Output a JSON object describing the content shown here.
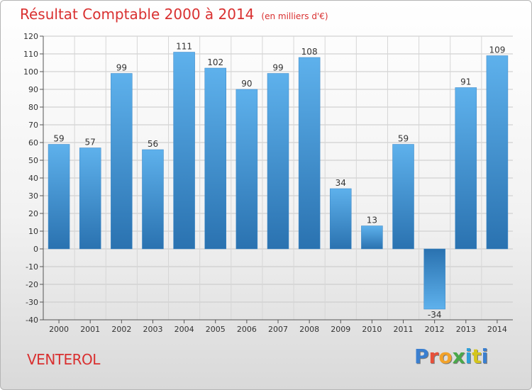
{
  "chart_data": {
    "type": "bar",
    "title": "Résultat Comptable 2000 à 2014",
    "unit_label": "(en milliers d'€)",
    "categories": [
      "2000",
      "2001",
      "2002",
      "2003",
      "2004",
      "2005",
      "2006",
      "2007",
      "2008",
      "2009",
      "2010",
      "2011",
      "2012",
      "2013",
      "2014"
    ],
    "values": [
      59,
      57,
      99,
      56,
      111,
      102,
      90,
      99,
      108,
      34,
      13,
      59,
      -34,
      91,
      109
    ],
    "ylim": [
      -40,
      120
    ],
    "yticks": [
      120,
      110,
      100,
      90,
      80,
      70,
      60,
      50,
      40,
      30,
      20,
      10,
      0,
      -10,
      -20,
      -30,
      -40
    ],
    "grid": true,
    "xlabel": "",
    "ylabel": "",
    "colors": {
      "bar_light": "#5eb1ec",
      "bar_dark": "#2a72b0",
      "title": "#d93030"
    }
  },
  "commune": "VENTEROL",
  "logo": {
    "letters": [
      "P",
      "r",
      "o",
      "x",
      "i",
      "t",
      "i"
    ]
  }
}
